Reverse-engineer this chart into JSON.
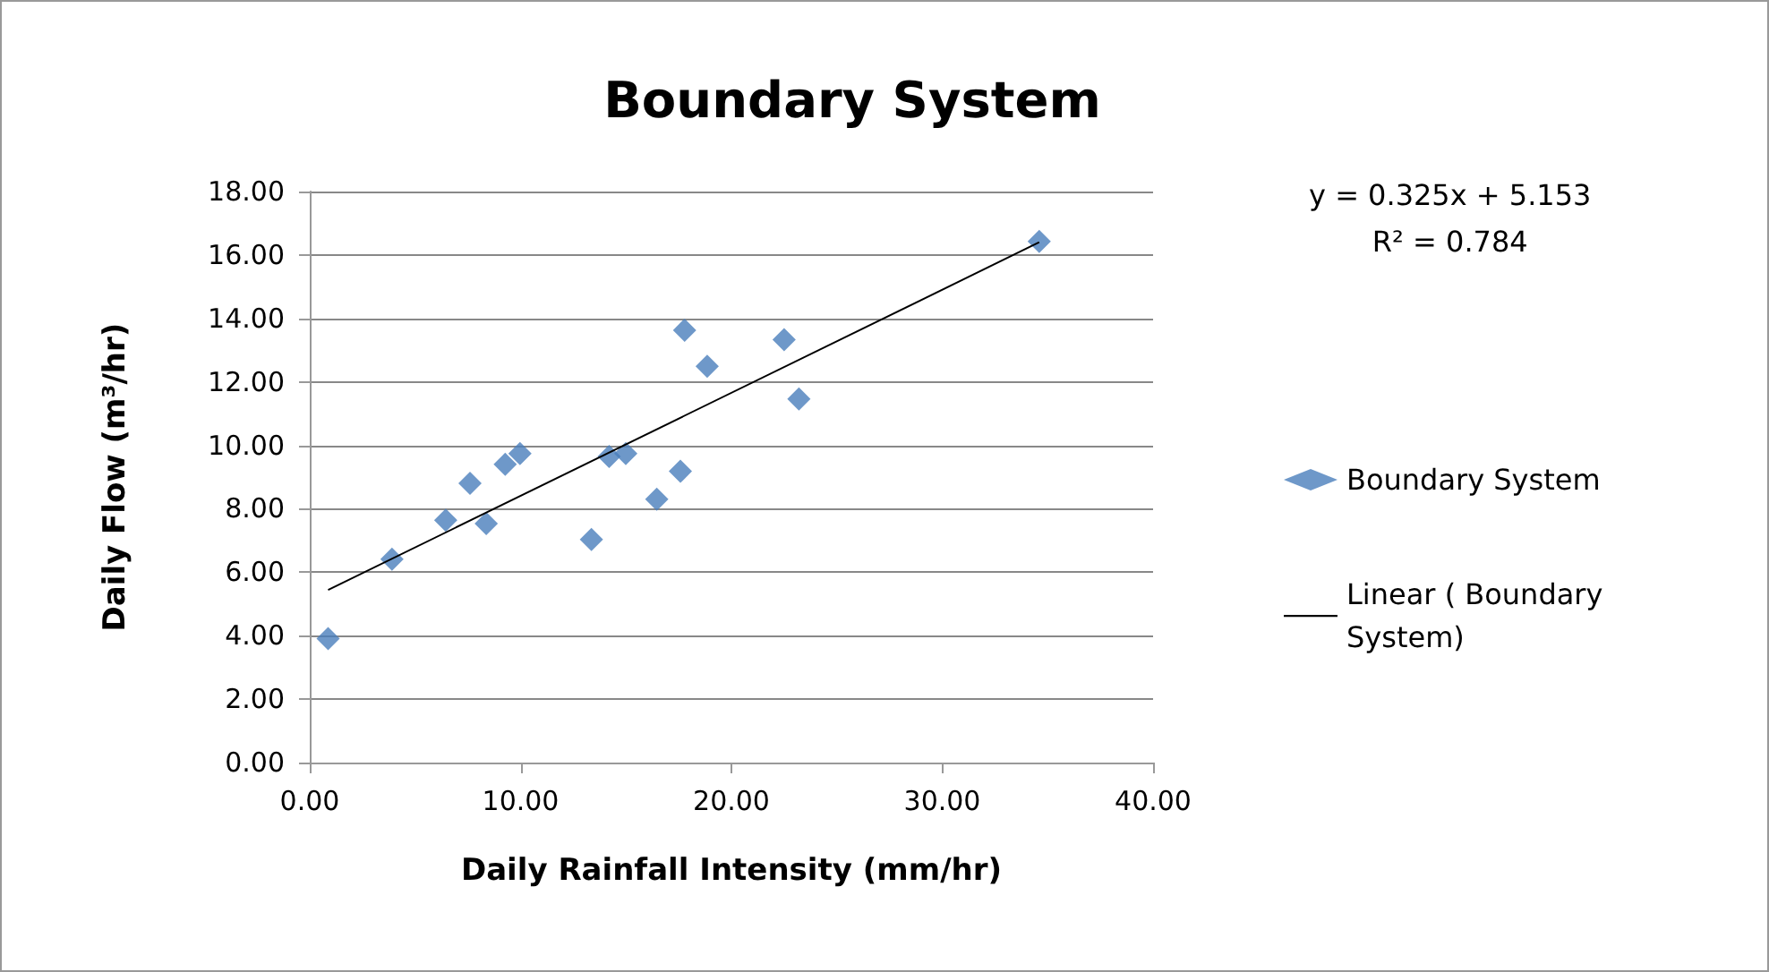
{
  "chart_data": {
    "type": "scatter",
    "title": "Boundary System",
    "xlabel": "Daily Rainfall Intensity (mm/hr)",
    "ylabel": "Daily Flow (m³/hr)",
    "annotations": [
      "y = 0.325x + 5.153",
      "R² = 0.784"
    ],
    "series": [
      {
        "name": "Boundary System",
        "color": "#4a7ebb",
        "marker": "diamond",
        "x": [
          0.87,
          3.9,
          6.45,
          7.6,
          8.37,
          9.27,
          9.97,
          13.36,
          14.2,
          14.99,
          16.46,
          17.58,
          17.78,
          18.85,
          22.5,
          23.2,
          34.6
        ],
        "values": [
          3.91,
          6.41,
          7.64,
          8.8,
          7.53,
          9.4,
          9.74,
          7.03,
          9.65,
          9.74,
          8.3,
          9.18,
          13.63,
          12.49,
          13.33,
          11.46,
          16.43
        ]
      },
      {
        "name": "Linear ( Boundary System)",
        "type": "line",
        "color": "#000000",
        "marker": "none",
        "line_style": "solid",
        "x": [
          0.87,
          34.6
        ],
        "values": [
          5.44,
          16.4
        ]
      }
    ],
    "xlim": [
      0,
      40
    ],
    "xticks": [
      {
        "value": 0,
        "label": "0.00"
      },
      {
        "value": 10,
        "label": "10.00"
      },
      {
        "value": 20,
        "label": "20.00"
      },
      {
        "value": 30,
        "label": "30.00"
      },
      {
        "value": 40,
        "label": "40.00"
      }
    ],
    "ylim": [
      0,
      18
    ],
    "yticks": [
      {
        "value": 0,
        "label": "0.00"
      },
      {
        "value": 2,
        "label": "2.00"
      },
      {
        "value": 4,
        "label": "4.00"
      },
      {
        "value": 6,
        "label": "6.00"
      },
      {
        "value": 8,
        "label": "8.00"
      },
      {
        "value": 10,
        "label": "10.00"
      },
      {
        "value": 12,
        "label": "12.00"
      },
      {
        "value": 14,
        "label": "14.00"
      },
      {
        "value": 16,
        "label": "16.00"
      },
      {
        "value": 18,
        "label": "18.00"
      }
    ],
    "grid": "y",
    "legend": "right"
  }
}
